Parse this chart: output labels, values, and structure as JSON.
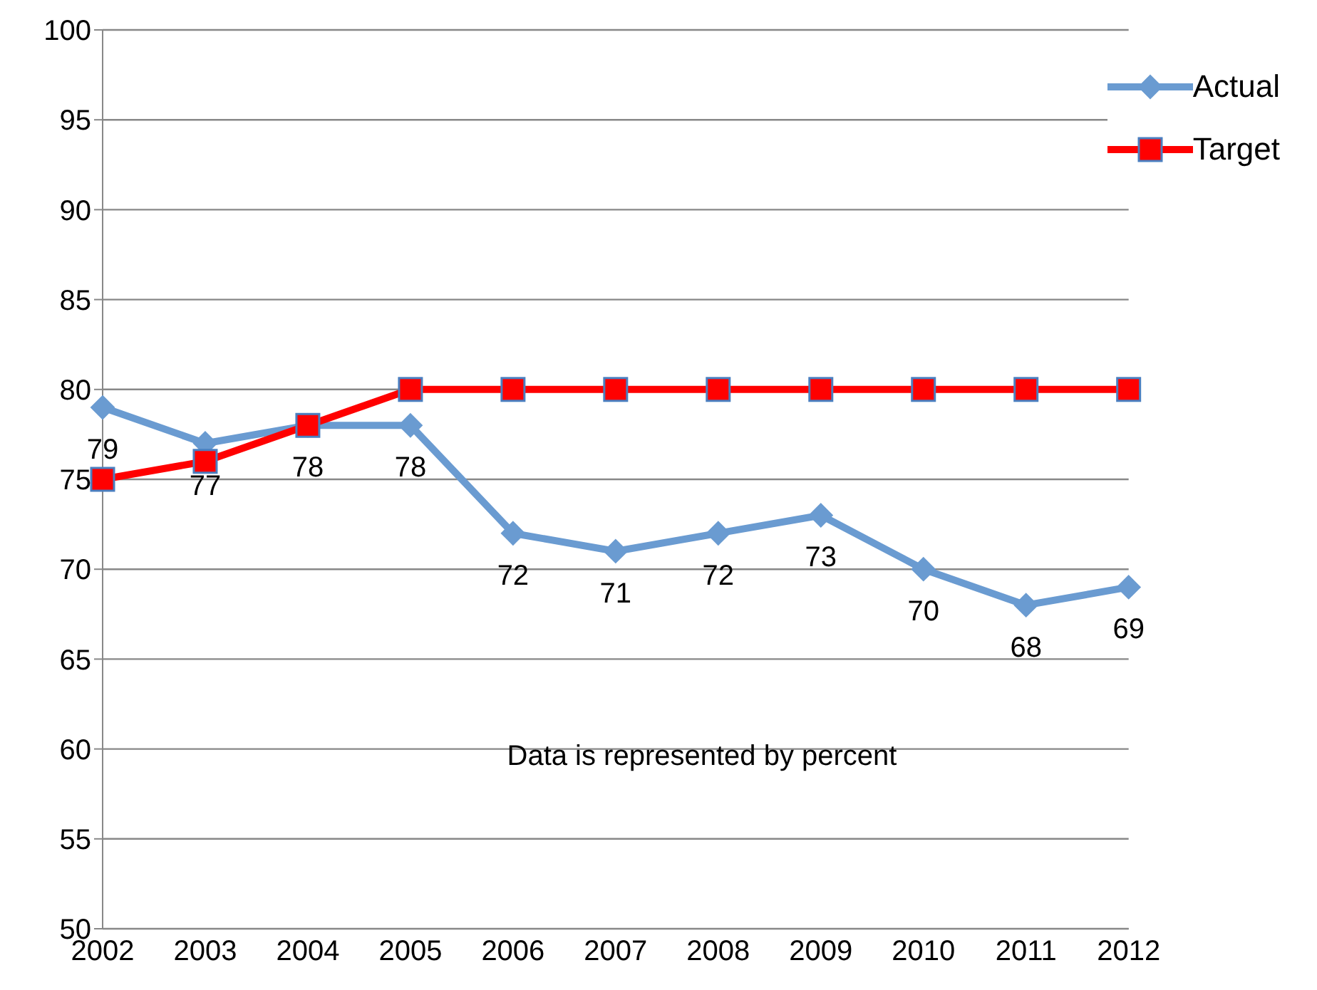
{
  "chart_data": {
    "type": "line",
    "categories": [
      "2002",
      "2003",
      "2004",
      "2005",
      "2006",
      "2007",
      "2008",
      "2009",
      "2010",
      "2011",
      "2012"
    ],
    "series": [
      {
        "name": "Actual",
        "color": "#6a9bd1",
        "marker": "diamond",
        "values": [
          79,
          77,
          78,
          78,
          72,
          71,
          72,
          73,
          70,
          68,
          69
        ],
        "value_labels": [
          "79",
          "77",
          "78",
          "78",
          "72",
          "71",
          "72",
          "73",
          "70",
          "68",
          "69"
        ]
      },
      {
        "name": "Target",
        "color": "#ff0000",
        "marker": "square",
        "values": [
          75,
          76,
          78,
          80,
          80,
          80,
          80,
          80,
          80,
          80,
          80
        ]
      }
    ],
    "ylim": [
      50,
      100
    ],
    "yticks": [
      50,
      55,
      60,
      65,
      70,
      75,
      80,
      85,
      90,
      95,
      100
    ],
    "grid": "y",
    "legend": "top right",
    "annotations": [
      "Data is represented by percent"
    ]
  }
}
